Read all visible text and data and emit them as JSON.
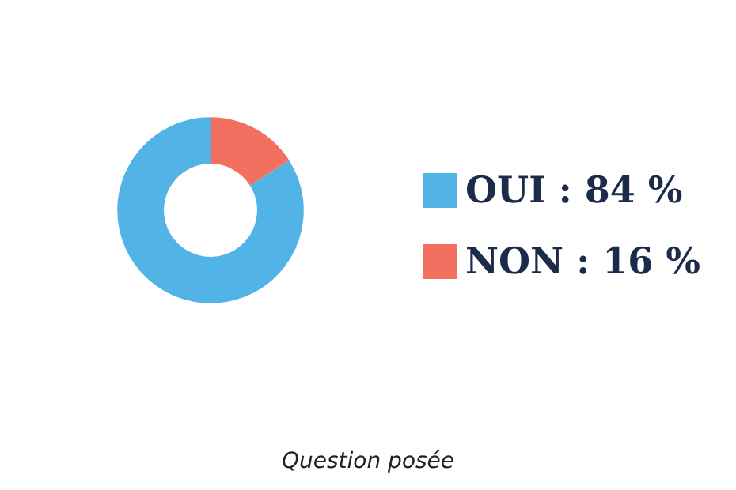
{
  "chart_data": {
    "type": "donut",
    "categories": [
      "OUI : 84 %",
      "NON : 16 %"
    ],
    "values": [
      84,
      16
    ],
    "colors": [
      "#52b4e6",
      "#f2705f"
    ],
    "legend": "right",
    "annotations": [
      "Question posée"
    ]
  }
}
